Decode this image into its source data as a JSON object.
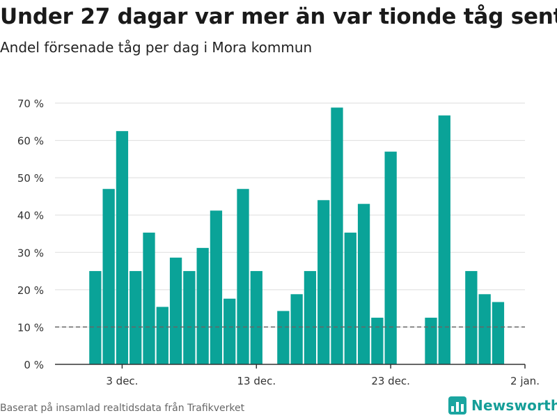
{
  "title": "Under 27 dagar var mer än var tionde tåg sent",
  "subtitle": "Andel försenade tåg per dag i Mora kommun",
  "source": "Baserat på insamlad realtidsdata från Trafikverket",
  "brand": "Newsworthy",
  "colors": {
    "bar": "#0aa398",
    "grid": "#dddddd",
    "axis": "#333333",
    "reference": "#666666",
    "brand": "#159e98"
  },
  "chart_data": {
    "type": "bar",
    "title": "Under 27 dagar var mer än var tionde tåg sent",
    "subtitle": "Andel försenade tåg per dag i Mora kommun",
    "xlabel": "",
    "ylabel": "",
    "x_unit": "date",
    "x": [
      "2019-12-01",
      "2019-12-02",
      "2019-12-03",
      "2019-12-04",
      "2019-12-05",
      "2019-12-06",
      "2019-12-07",
      "2019-12-08",
      "2019-12-09",
      "2019-12-10",
      "2019-12-11",
      "2019-12-12",
      "2019-12-13",
      "2019-12-14",
      "2019-12-15",
      "2019-12-16",
      "2019-12-17",
      "2019-12-18",
      "2019-12-19",
      "2019-12-20",
      "2019-12-21",
      "2019-12-22",
      "2019-12-23",
      "2019-12-24",
      "2019-12-25",
      "2019-12-26",
      "2019-12-27",
      "2019-12-28",
      "2019-12-29",
      "2019-12-30",
      "2019-12-31",
      "2020-01-01",
      "2020-01-02"
    ],
    "values": [
      25,
      47,
      62.5,
      25,
      35.3,
      15.4,
      28.6,
      25,
      31.2,
      41.2,
      17.6,
      47,
      25,
      null,
      14.3,
      18.8,
      25,
      44,
      68.8,
      35.3,
      43,
      12.5,
      57,
      null,
      null,
      12.5,
      66.7,
      null,
      25,
      18.8,
      16.7,
      null,
      null
    ],
    "x_range": [
      "2019-11-28",
      "2020-01-02"
    ],
    "x_ticks": [
      "2019-12-03",
      "2019-12-13",
      "2019-12-23",
      "2020-01-02"
    ],
    "x_tick_labels": [
      "3 dec.",
      "13 dec.",
      "23 dec.",
      "2 jan."
    ],
    "ylim": [
      0,
      70
    ],
    "y_ticks": [
      0,
      10,
      20,
      30,
      40,
      50,
      60,
      70
    ],
    "y_tick_labels": [
      "0 %",
      "10 %",
      "20 %",
      "30 %",
      "40 %",
      "50 %",
      "60 %",
      "70 %"
    ],
    "reference_line": {
      "value": 10,
      "style": "dashed"
    },
    "grid": true,
    "legend": "none"
  }
}
